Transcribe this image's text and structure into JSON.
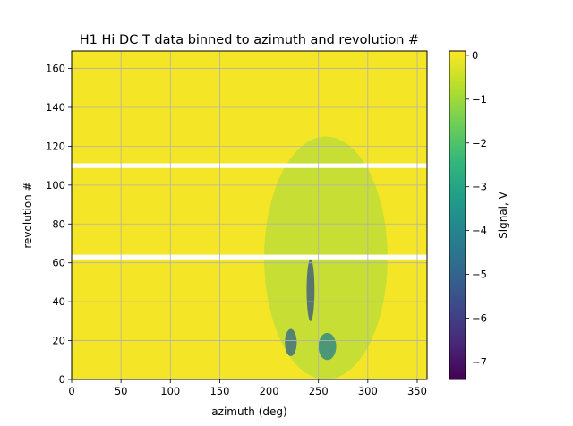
{
  "chart_data": {
    "type": "heatmap",
    "title": "H1 Hi DC T data binned to azimuth and revolution #",
    "xlabel": "azimuth (deg)",
    "ylabel": "revolution #",
    "xlim": [
      0,
      360
    ],
    "ylim": [
      0,
      169
    ],
    "x_ticks": [
      0,
      50,
      100,
      150,
      200,
      250,
      300,
      350
    ],
    "y_ticks": [
      0,
      20,
      40,
      60,
      80,
      100,
      120,
      140,
      160
    ],
    "grid": true,
    "colormap": "viridis",
    "colorbar": {
      "label": "Signal, V",
      "range": [
        -7.4,
        0.1
      ],
      "ticks": [
        0,
        -1,
        -2,
        -3,
        -4,
        -5,
        -6,
        -7
      ],
      "tick_labels": [
        "0",
        "−1",
        "−2",
        "−3",
        "−4",
        "−5",
        "−6",
        "−7"
      ]
    },
    "background_value": 0,
    "missing_rows_revolution": [
      110,
      63
    ],
    "features": [
      {
        "azimuth": [
          238,
          246
        ],
        "revolution": [
          30,
          62
        ],
        "min_value": -6.0
      },
      {
        "azimuth": [
          216,
          228
        ],
        "revolution": [
          12,
          26
        ],
        "min_value": -5.5
      },
      {
        "azimuth": [
          250,
          268
        ],
        "revolution": [
          10,
          24
        ],
        "min_value": -4.5
      },
      {
        "azimuth": [
          195,
          320
        ],
        "revolution": [
          0,
          125
        ],
        "min_value": -1.5
      }
    ]
  }
}
